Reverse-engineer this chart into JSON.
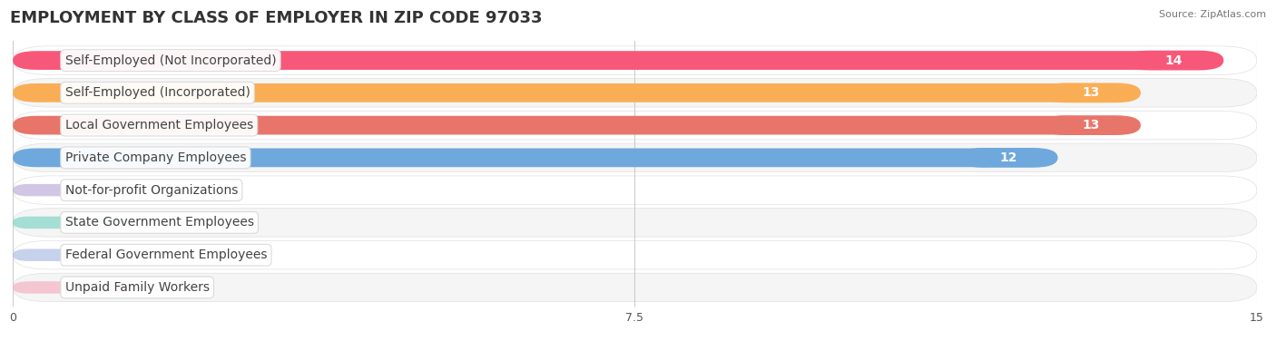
{
  "title": "EMPLOYMENT BY CLASS OF EMPLOYER IN ZIP CODE 97033",
  "source": "Source: ZipAtlas.com",
  "categories": [
    "Self-Employed (Not Incorporated)",
    "Self-Employed (Incorporated)",
    "Local Government Employees",
    "Private Company Employees",
    "Not-for-profit Organizations",
    "State Government Employees",
    "Federal Government Employees",
    "Unpaid Family Workers"
  ],
  "values": [
    14,
    13,
    13,
    12,
    0,
    0,
    0,
    0
  ],
  "bar_colors": [
    "#F7587A",
    "#F9AE56",
    "#E8756A",
    "#6FA8DC",
    "#B4A0D4",
    "#6ECFBF",
    "#A0B4E0",
    "#F4A8BC"
  ],
  "xlim": [
    0,
    15
  ],
  "xticks": [
    0,
    7.5,
    15
  ],
  "background_color": "#FFFFFF",
  "row_bg_colors": [
    "#FFFFFF",
    "#F5F5F5"
  ],
  "title_fontsize": 13,
  "label_fontsize": 10,
  "value_fontsize": 9
}
